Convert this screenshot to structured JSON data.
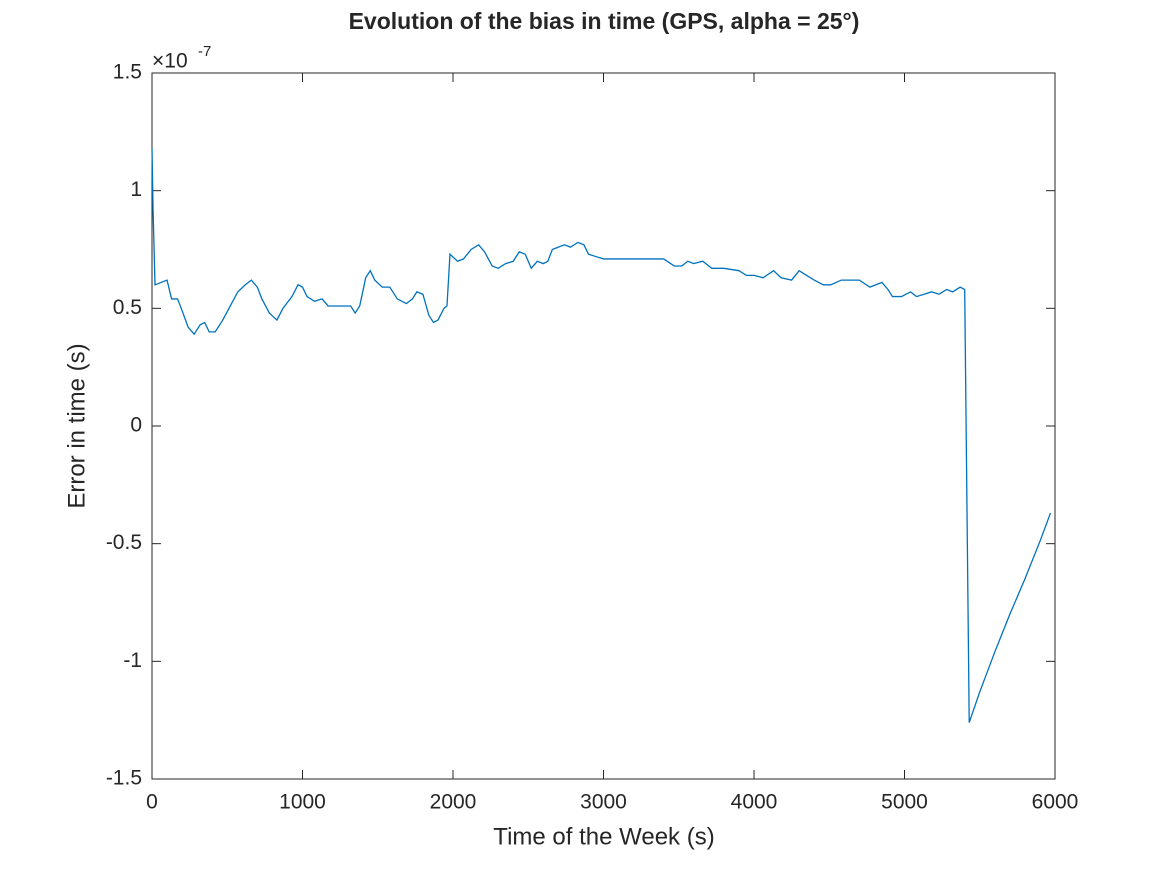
{
  "chart_data": {
    "type": "line",
    "title": "Evolution of the bias in time (GPS, alpha = 25°)",
    "x_label": "Time of the Week (s)",
    "y_label": "Error in time (s)",
    "y_exponent_base": "×10",
    "y_exponent": "-7",
    "x": [
      0,
      7,
      20,
      60,
      100,
      130,
      170,
      200,
      240,
      280,
      320,
      350,
      380,
      420,
      470,
      520,
      570,
      620,
      660,
      700,
      730,
      780,
      830,
      870,
      930,
      970,
      1000,
      1030,
      1080,
      1130,
      1170,
      1220,
      1270,
      1320,
      1350,
      1380,
      1420,
      1450,
      1480,
      1530,
      1580,
      1630,
      1690,
      1730,
      1760,
      1800,
      1840,
      1870,
      1900,
      1940,
      1960,
      1980,
      2030,
      2070,
      2120,
      2170,
      2210,
      2260,
      2300,
      2350,
      2400,
      2440,
      2480,
      2520,
      2560,
      2600,
      2630,
      2660,
      2700,
      2740,
      2780,
      2830,
      2870,
      2900,
      2950,
      3000,
      3100,
      3200,
      3300,
      3400,
      3470,
      3520,
      3560,
      3600,
      3660,
      3720,
      3800,
      3900,
      3950,
      4000,
      4060,
      4130,
      4180,
      4250,
      4300,
      4350,
      4400,
      4460,
      4510,
      4580,
      4700,
      4770,
      4850,
      4890,
      4920,
      4980,
      5040,
      5080,
      5130,
      5180,
      5230,
      5280,
      5320,
      5370,
      5400,
      5430,
      5500,
      5600,
      5700,
      5800,
      5900,
      5970
    ],
    "series": [
      {
        "color": "#0072bd",
        "values": [
          1.18,
          0.92,
          0.6,
          0.61,
          0.62,
          0.54,
          0.54,
          0.49,
          0.42,
          0.39,
          0.43,
          0.44,
          0.4,
          0.4,
          0.45,
          0.51,
          0.57,
          0.6,
          0.62,
          0.59,
          0.54,
          0.48,
          0.45,
          0.5,
          0.55,
          0.6,
          0.59,
          0.55,
          0.53,
          0.54,
          0.51,
          0.51,
          0.51,
          0.51,
          0.48,
          0.51,
          0.63,
          0.66,
          0.62,
          0.59,
          0.59,
          0.54,
          0.52,
          0.54,
          0.57,
          0.56,
          0.47,
          0.44,
          0.45,
          0.5,
          0.51,
          0.73,
          0.7,
          0.71,
          0.75,
          0.77,
          0.74,
          0.68,
          0.67,
          0.69,
          0.7,
          0.74,
          0.73,
          0.67,
          0.7,
          0.69,
          0.7,
          0.75,
          0.76,
          0.77,
          0.76,
          0.78,
          0.77,
          0.73,
          0.72,
          0.71,
          0.71,
          0.71,
          0.71,
          0.71,
          0.68,
          0.68,
          0.7,
          0.69,
          0.7,
          0.67,
          0.67,
          0.66,
          0.64,
          0.64,
          0.63,
          0.66,
          0.63,
          0.62,
          0.66,
          0.64,
          0.62,
          0.6,
          0.6,
          0.62,
          0.62,
          0.59,
          0.61,
          0.58,
          0.55,
          0.55,
          0.57,
          0.55,
          0.56,
          0.57,
          0.56,
          0.58,
          0.57,
          0.59,
          0.58,
          -1.26,
          -1.13,
          -0.96,
          -0.8,
          -0.65,
          -0.49,
          -0.37
        ]
      }
    ],
    "xlim": [
      0,
      6000
    ],
    "xticks": [
      0,
      1000,
      2000,
      3000,
      4000,
      5000,
      6000
    ],
    "ylim": [
      -1.5,
      1.5
    ],
    "yticks": [
      -1.5,
      -1,
      -0.5,
      0,
      0.5,
      1,
      1.5
    ],
    "grid": false
  }
}
